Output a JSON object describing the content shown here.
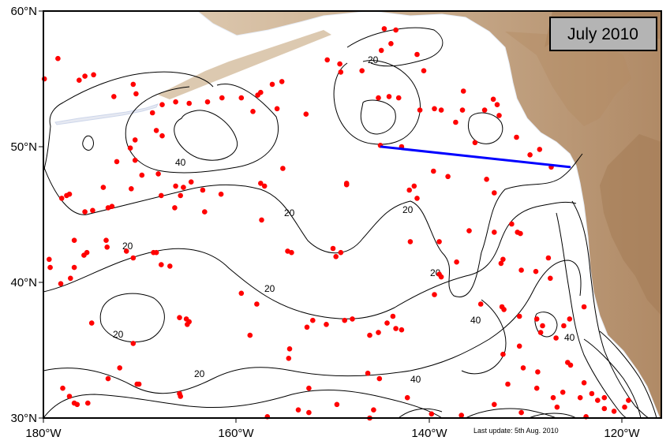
{
  "title": "July 2010",
  "update_note": "Last update: 5th Aug. 2010",
  "axes": {
    "lat_labels": [
      "60°N",
      "50°N",
      "40°N",
      "30°N"
    ],
    "lon_labels": [
      "180°W",
      "160°W",
      "140°W",
      "120°W"
    ]
  },
  "contour_labels": [
    "20",
    "40",
    "20",
    "20",
    "20",
    "20",
    "20",
    "20",
    "40",
    "40",
    "40",
    "20"
  ],
  "colors": {
    "land": "#c8ab8c",
    "land_dark": "#a9805a",
    "land_light": "#e0d0bc",
    "float_marker": "#ff0000",
    "transect_line": "#0000ff",
    "title_box": "#b4b4b4"
  },
  "transect": {
    "start": {
      "lon": -145,
      "lat": 50
    },
    "end": {
      "lon": -125.5,
      "lat": 48.5
    }
  },
  "floats": [
    [
      -179.9,
      55.0
    ],
    [
      -178.5,
      56.5
    ],
    [
      -176.3,
      54.9
    ],
    [
      -175.7,
      55.2
    ],
    [
      -174.8,
      55.3
    ],
    [
      -172.7,
      53.7
    ],
    [
      -170.7,
      54.6
    ],
    [
      -170.4,
      53.9
    ],
    [
      -168.7,
      52.5
    ],
    [
      -168.3,
      51.2
    ],
    [
      -167.7,
      53.1
    ],
    [
      -166.3,
      53.3
    ],
    [
      -164.9,
      53.2
    ],
    [
      -163.0,
      53.3
    ],
    [
      -161.5,
      53.6
    ],
    [
      -159.5,
      53.6
    ],
    [
      -158.3,
      52.6
    ],
    [
      -157.8,
      53.8
    ],
    [
      -156.3,
      54.6
    ],
    [
      -155.3,
      54.8
    ],
    [
      -155.8,
      52.8
    ],
    [
      -157.5,
      54.0
    ],
    [
      -152.8,
      52.4
    ],
    [
      -149.2,
      55.5
    ],
    [
      -150.6,
      56.4
    ],
    [
      -147.0,
      55.6
    ],
    [
      -145.0,
      57.1
    ],
    [
      -144.7,
      58.7
    ],
    [
      -144.0,
      57.6
    ],
    [
      -143.5,
      58.6
    ],
    [
      -141.3,
      56.8
    ],
    [
      -140.6,
      55.6
    ],
    [
      -145.3,
      53.6
    ],
    [
      -144.2,
      53.7
    ],
    [
      -143.2,
      53.6
    ],
    [
      -141.0,
      52.7
    ],
    [
      -139.5,
      52.8
    ],
    [
      -138.8,
      52.7
    ],
    [
      -136.6,
      52.7
    ],
    [
      -136.5,
      54.1
    ],
    [
      -134.3,
      52.7
    ],
    [
      -133.4,
      53.5
    ],
    [
      -133.0,
      53.1
    ],
    [
      -132.8,
      52.3
    ],
    [
      -131.0,
      50.7
    ],
    [
      -129.6,
      49.4
    ],
    [
      -128.6,
      49.8
    ],
    [
      -127.4,
      48.5
    ],
    [
      -137.3,
      51.8
    ],
    [
      -135.3,
      50.3
    ],
    [
      -139.6,
      48.2
    ],
    [
      -138.1,
      47.8
    ],
    [
      -134.1,
      47.6
    ],
    [
      -133.3,
      46.6
    ],
    [
      -142.9,
      50.0
    ],
    [
      -145.1,
      50.1
    ],
    [
      -142.1,
      46.8
    ],
    [
      -141.3,
      46.2
    ],
    [
      -142.0,
      43.0
    ],
    [
      -139.0,
      43.0
    ],
    [
      -137.2,
      41.5
    ],
    [
      -139.0,
      40.6
    ],
    [
      -138.8,
      40.4
    ],
    [
      -135.9,
      43.8
    ],
    [
      -133.3,
      43.7
    ],
    [
      -130.9,
      43.7
    ],
    [
      -130.6,
      43.6
    ],
    [
      -131.5,
      44.3
    ],
    [
      -132.4,
      41.7
    ],
    [
      -132.6,
      41.4
    ],
    [
      -127.7,
      41.8
    ],
    [
      -127.5,
      40.3
    ],
    [
      -129.0,
      40.8
    ],
    [
      -130.5,
      40.9
    ],
    [
      -132.3,
      38.0
    ],
    [
      -132.5,
      38.2
    ],
    [
      -134.7,
      38.4
    ],
    [
      -130.7,
      37.5
    ],
    [
      -128.9,
      37.3
    ],
    [
      -128.3,
      36.8
    ],
    [
      -126.9,
      35.9
    ],
    [
      -128.5,
      36.3
    ],
    [
      -125.5,
      37.3
    ],
    [
      -124.0,
      38.2
    ],
    [
      -126.1,
      36.8
    ],
    [
      -130.7,
      35.3
    ],
    [
      -132.4,
      34.7
    ],
    [
      -130.3,
      33.7
    ],
    [
      -128.8,
      33.4
    ],
    [
      -131.9,
      32.5
    ],
    [
      -128.9,
      32.2
    ],
    [
      -127.2,
      31.5
    ],
    [
      -126.2,
      31.9
    ],
    [
      -124.4,
      31.5
    ],
    [
      -123.2,
      31.8
    ],
    [
      -122.6,
      31.3
    ],
    [
      -121.9,
      31.5
    ],
    [
      -121.9,
      30.7
    ],
    [
      -120.9,
      30.5
    ],
    [
      -119.8,
      30.8
    ],
    [
      -119.4,
      31.3
    ],
    [
      -124.0,
      32.6
    ],
    [
      -123.8,
      30.1
    ],
    [
      -126.8,
      30.8
    ],
    [
      -130.5,
      30.4
    ],
    [
      -133.3,
      31.0
    ],
    [
      -136.7,
      30.2
    ],
    [
      -139.8,
      30.3
    ],
    [
      -142.3,
      31.5
    ],
    [
      -145.8,
      30.6
    ],
    [
      -146.2,
      30.0
    ],
    [
      -149.6,
      31.0
    ],
    [
      -152.5,
      30.4
    ],
    [
      -156.8,
      30.1
    ],
    [
      -145.2,
      32.9
    ],
    [
      -146.4,
      33.3
    ],
    [
      -146.2,
      36.1
    ],
    [
      -145.3,
      36.3
    ],
    [
      -143.5,
      36.6
    ],
    [
      -142.9,
      36.5
    ],
    [
      -143.8,
      37.5
    ],
    [
      -144.4,
      37.0
    ],
    [
      -148.0,
      37.3
    ],
    [
      -148.8,
      37.2
    ],
    [
      -150.7,
      36.9
    ],
    [
      -152.7,
      36.7
    ],
    [
      -152.1,
      37.2
    ],
    [
      -154.6,
      34.4
    ],
    [
      -158.6,
      36.1
    ],
    [
      -165.2,
      37.3
    ],
    [
      -165.9,
      37.4
    ],
    [
      -165.1,
      36.9
    ],
    [
      -164.9,
      37.1
    ],
    [
      -170.7,
      35.5
    ],
    [
      -173.3,
      32.9
    ],
    [
      -172.1,
      33.7
    ],
    [
      -170.3,
      32.5
    ],
    [
      -170.1,
      32.5
    ],
    [
      -165.9,
      31.8
    ],
    [
      -165.8,
      31.6
    ],
    [
      -175.0,
      37.0
    ],
    [
      -178.0,
      32.2
    ],
    [
      -177.3,
      31.6
    ],
    [
      -176.8,
      31.1
    ],
    [
      -176.5,
      31.0
    ],
    [
      -175.4,
      31.1
    ],
    [
      -176.8,
      41.1
    ],
    [
      -177.2,
      40.3
    ],
    [
      -178.2,
      39.9
    ],
    [
      -179.3,
      41.1
    ],
    [
      -179.4,
      41.7
    ],
    [
      -175.8,
      42.0
    ],
    [
      -175.5,
      42.2
    ],
    [
      -173.4,
      42.6
    ],
    [
      -173.5,
      43.1
    ],
    [
      -171.4,
      42.3
    ],
    [
      -170.7,
      41.8
    ],
    [
      -168.6,
      42.2
    ],
    [
      -168.3,
      42.2
    ],
    [
      -167.8,
      41.3
    ],
    [
      -166.9,
      41.2
    ],
    [
      -166.4,
      45.5
    ],
    [
      -165.8,
      46.4
    ],
    [
      -164.7,
      47.4
    ],
    [
      -163.5,
      46.8
    ],
    [
      -161.6,
      46.5
    ],
    [
      -163.3,
      45.2
    ],
    [
      -165.5,
      47.0
    ],
    [
      -166.3,
      47.1
    ],
    [
      -167.8,
      46.4
    ],
    [
      -168.1,
      48.0
    ],
    [
      -169.8,
      47.9
    ],
    [
      -170.9,
      46.9
    ],
    [
      -172.9,
      45.6
    ],
    [
      -173.8,
      47.0
    ],
    [
      -174.9,
      45.3
    ],
    [
      -177.3,
      46.5
    ],
    [
      -177.6,
      46.4
    ],
    [
      -178.1,
      46.2
    ],
    [
      -176.8,
      43.1
    ],
    [
      -175.7,
      45.2
    ],
    [
      -173.3,
      45.5
    ],
    [
      -170.5,
      49.0
    ],
    [
      -171.0,
      49.9
    ],
    [
      -170.5,
      50.5
    ],
    [
      -172.4,
      48.9
    ],
    [
      -167.7,
      50.8
    ],
    [
      -157.5,
      47.3
    ],
    [
      -157.1,
      47.1
    ],
    [
      -154.7,
      42.3
    ],
    [
      -154.3,
      42.2
    ],
    [
      -150.0,
      42.5
    ],
    [
      -149.7,
      41.9
    ],
    [
      -149.2,
      42.2
    ],
    [
      -154.5,
      35.1
    ],
    [
      -152.5,
      32.2
    ],
    [
      -153.6,
      30.6
    ],
    [
      -159.5,
      39.2
    ],
    [
      -157.4,
      44.6
    ],
    [
      -155.2,
      48.4
    ],
    [
      -157.9,
      38.4
    ],
    [
      -148.6,
      47.2
    ],
    [
      -148.6,
      47.3
    ],
    [
      -149.3,
      56.1
    ],
    [
      -141.6,
      47.1
    ],
    [
      -139.5,
      39.1
    ],
    [
      -125.7,
      34.1
    ],
    [
      -125.4,
      33.9
    ]
  ]
}
